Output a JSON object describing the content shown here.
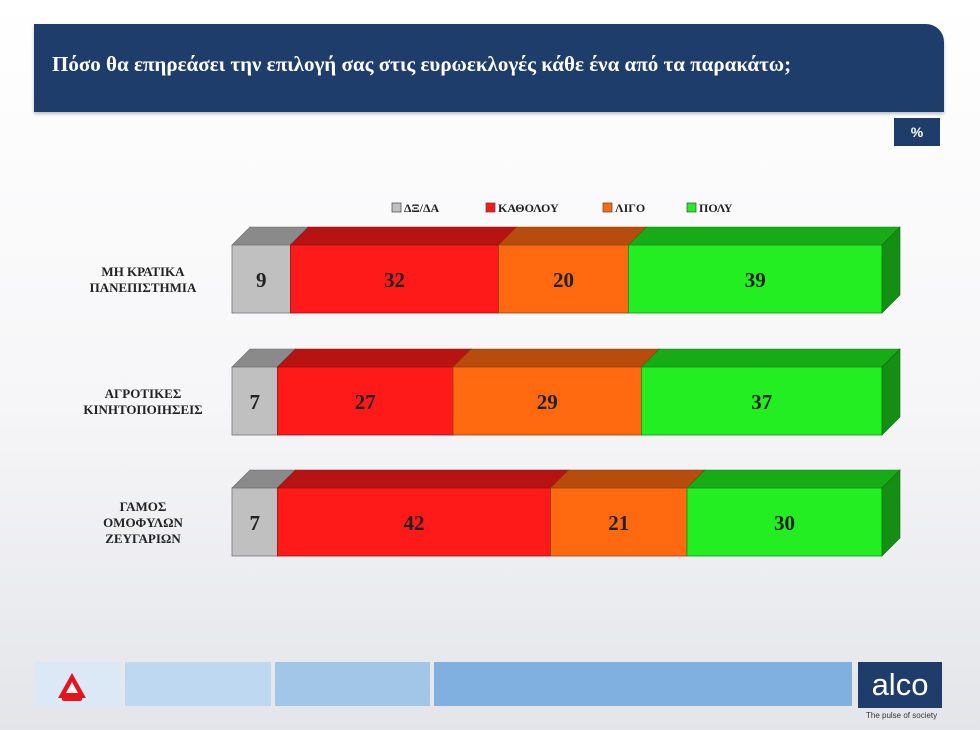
{
  "header": {
    "title": "Πόσο θα επηρεάσει την επιλογή σας στις ευρωεκλογές κάθε ένα από τα παρακάτω;",
    "unit_badge": "%"
  },
  "chart_data": {
    "type": "bar",
    "orientation": "horizontal",
    "stacked": true,
    "legend_position": "top",
    "categories": [
      [
        "ΜΗ ΚΡΑΤΙΚΑ",
        "ΠΑΝΕΠΙΣΤΗΜΙΑ"
      ],
      [
        "ΑΓΡΟΤΙΚΕΣ",
        "ΚΙΝΗΤΟΠΟΙΗΣΕΙΣ"
      ],
      [
        "ΓΑΜΟΣ",
        "ΟΜΟΦΥΛΩΝ",
        "ΖΕΥΓΑΡΙΩΝ"
      ]
    ],
    "series": [
      {
        "name": "ΔΞ/ΔΑ",
        "values": [
          9,
          7,
          7
        ],
        "color": "#c0c0c0"
      },
      {
        "name": "ΚΑΘΟΛΟΥ",
        "values": [
          32,
          27,
          42
        ],
        "color": "#ff1a1a"
      },
      {
        "name": "ΛΙΓΟ",
        "values": [
          20,
          29,
          21
        ],
        "color": "#ff6a10"
      },
      {
        "name": "ΠΟΛΥ",
        "values": [
          39,
          37,
          30
        ],
        "color": "#22ee22"
      }
    ]
  },
  "footer": {
    "brand": "alco",
    "tagline": "The pulse of society",
    "tiles_colors": [
      "#dbe9f7",
      "#bdd8f0",
      "#a2c6e8",
      "#7fb0df"
    ]
  }
}
